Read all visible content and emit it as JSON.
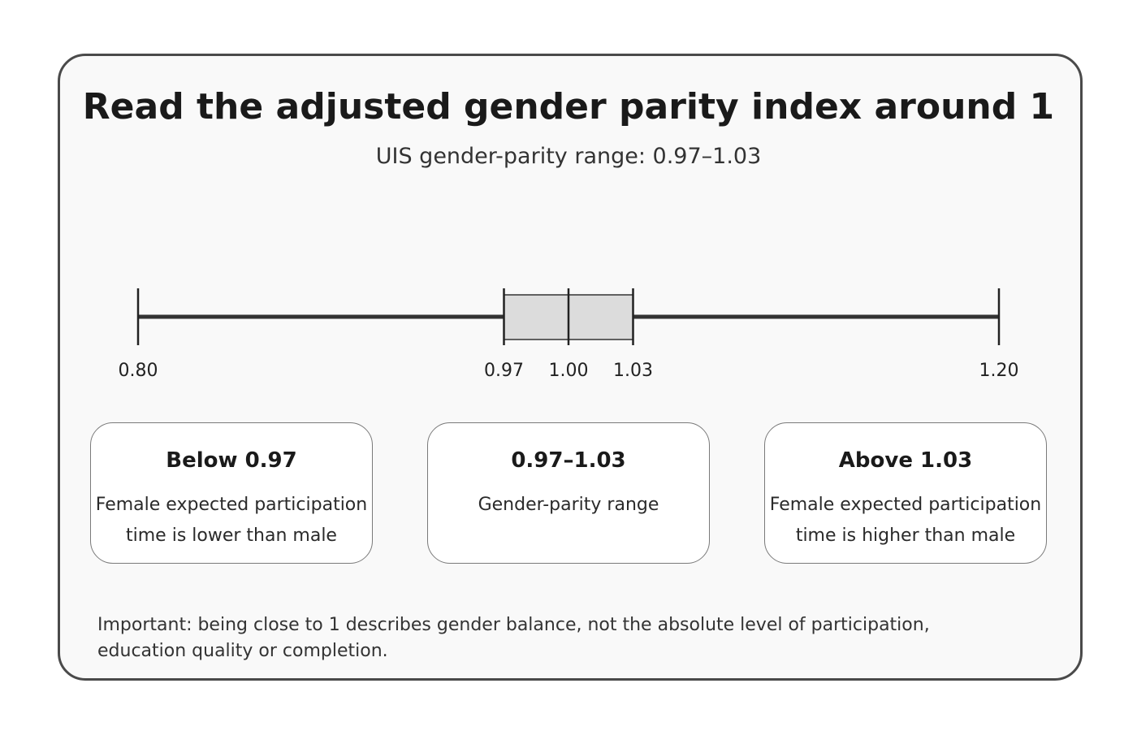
{
  "title": "Read the adjusted gender parity index around 1",
  "subtitle": "UIS gender-parity range: 0.97–1.03",
  "scale": {
    "min": 0.8,
    "max": 1.2,
    "parity_range": [
      0.97,
      1.03
    ],
    "center": 1.0,
    "ticks": [
      {
        "value": 0.8,
        "label": "0.80"
      },
      {
        "value": 0.97,
        "label": "0.97"
      },
      {
        "value": 1.0,
        "label": "1.00"
      },
      {
        "value": 1.03,
        "label": "1.03"
      },
      {
        "value": 1.2,
        "label": "1.20"
      }
    ],
    "line_color": "#333333",
    "range_fill": "#dcdcdc"
  },
  "boxes": [
    {
      "title": "Below 0.97",
      "lines": [
        "Female expected participation",
        "time is lower than male"
      ]
    },
    {
      "title": "0.97–1.03",
      "lines": [
        "Gender-parity range"
      ]
    },
    {
      "title": "Above 1.03",
      "lines": [
        "Female expected participation",
        "time is higher than male"
      ]
    }
  ],
  "note": {
    "lines": [
      "Important: being close to 1 describes gender balance, not the absolute level of participation,",
      "education quality or completion."
    ]
  }
}
